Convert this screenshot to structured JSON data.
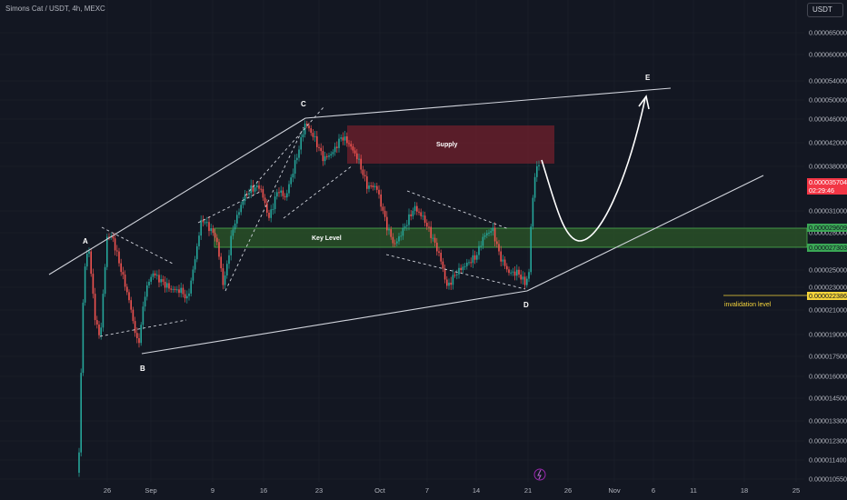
{
  "header": {
    "title": "Simons Cat / USDT, 4h, MEXC",
    "currency": "USDT"
  },
  "price_axis": {
    "ticks": [
      "0.000065000",
      "0.000060000",
      "0.000054000",
      "0.000050000",
      "0.000046000",
      "0.000042000",
      "0.000038000",
      "0.000031000",
      "0.000028000",
      "0.000025000",
      "0.000023000",
      "0.000021000",
      "0.000019000",
      "0.000017500",
      "0.000016000",
      "0.000014500",
      "0.000013300",
      "0.000012300",
      "0.000011400",
      "0.000010550"
    ],
    "current_price": "0.000035704",
    "countdown": "02:29:46",
    "level_upper": "0.000029609",
    "level_lower": "0.000027303",
    "invalidation_price": "0.000022386"
  },
  "time_axis": {
    "ticks": [
      "26",
      "Sep",
      "9",
      "16",
      "23",
      "Oct",
      "7",
      "14",
      "21",
      "26",
      "Nov",
      "6",
      "11",
      "18",
      "25"
    ]
  },
  "annotations": {
    "point_a": "A",
    "point_b": "B",
    "point_c": "C",
    "point_d": "D",
    "point_e": "E",
    "supply_label": "Supply",
    "key_level_label": "Key Level",
    "invalidation_label": "invalidation level"
  },
  "colors": {
    "background": "#131722",
    "grid": "#1e222d",
    "candle_up": "#26a69a",
    "candle_down": "#ef5350",
    "supply_zone": "#6d1f2b",
    "key_level_zone": "#2c5a28",
    "key_level_border": "#4caf50",
    "invalidation": "#f5d43b",
    "lines": "#d1d4dc",
    "countdown_tag": "#f23645"
  }
}
